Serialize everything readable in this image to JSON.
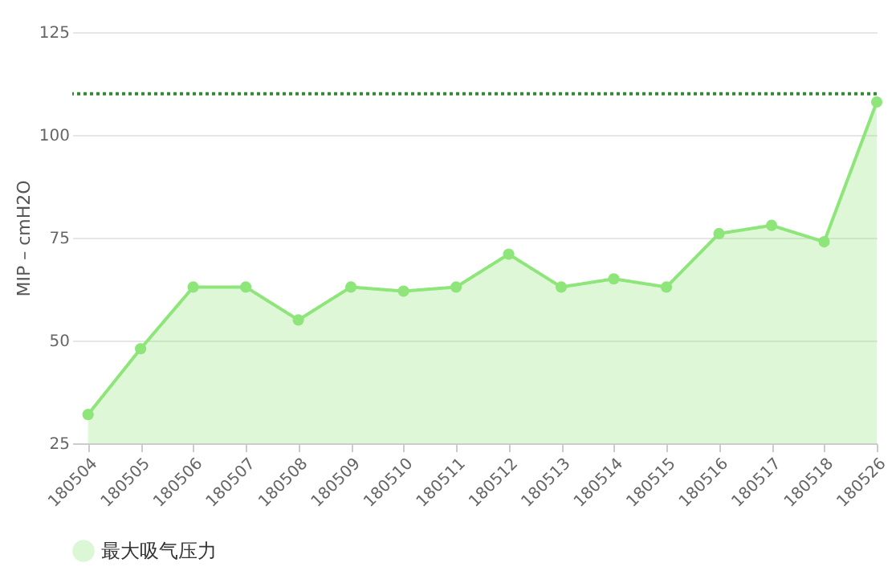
{
  "chart_data": {
    "type": "area",
    "ylabel": "MIP – cmH2O",
    "categories": [
      "180504",
      "180505",
      "180506",
      "180507",
      "180508",
      "180509",
      "180510",
      "180511",
      "180512",
      "180513",
      "180514",
      "180515",
      "180516",
      "180517",
      "180518",
      "180526"
    ],
    "series": [
      {
        "name": "最大吸气压力",
        "color": "#8ee57a",
        "values": [
          32,
          48,
          63,
          63,
          55,
          63,
          62,
          63,
          71,
          63,
          65,
          63,
          76,
          78,
          74,
          108
        ]
      }
    ],
    "ylim": [
      25,
      125
    ],
    "yticks": [
      25,
      50,
      75,
      100,
      125
    ],
    "grid": "y",
    "legend": "bottom",
    "marker": "circle",
    "line_style": "solid",
    "ref_lines": [
      {
        "axis": "y",
        "value": 110,
        "color": "#2e8b2e",
        "line_style": "dotted"
      }
    ]
  }
}
